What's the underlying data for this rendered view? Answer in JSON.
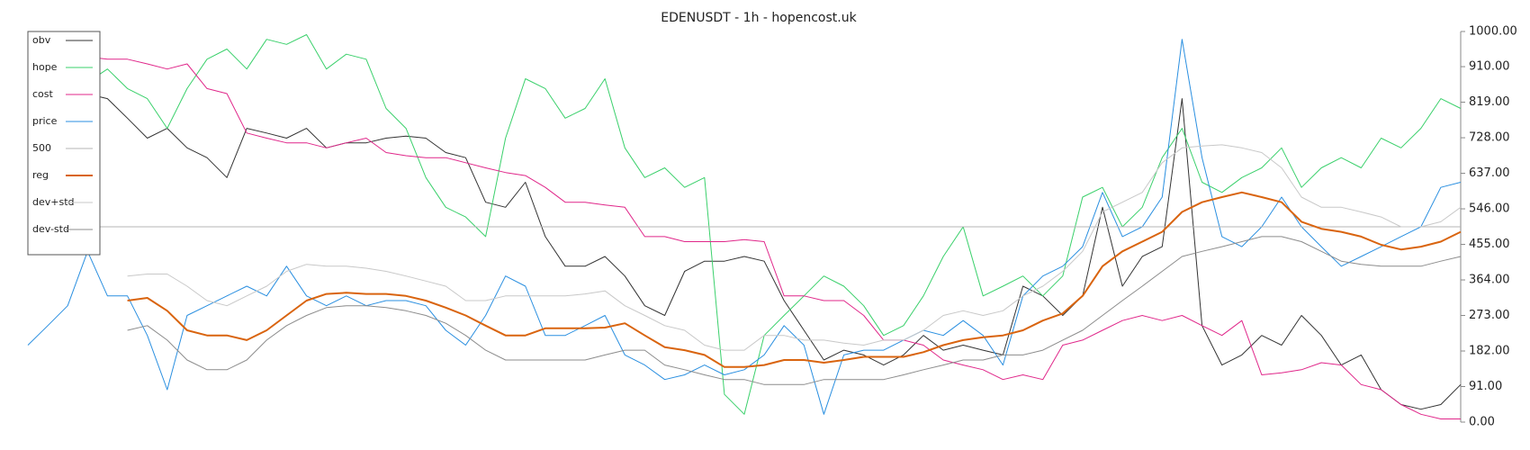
{
  "chart_data": {
    "type": "line",
    "title": "EDENUSDT - 1h - hopencost.uk",
    "legend": "upper left",
    "y_axis_side": "right",
    "ylim": [
      0,
      1000
    ],
    "yticks": [
      {
        "value": 0,
        "label": "0.00"
      },
      {
        "value": 91,
        "label": "91.00"
      },
      {
        "value": 182,
        "label": "182.00"
      },
      {
        "value": 273,
        "label": "273.00"
      },
      {
        "value": 364,
        "label": "364.00"
      },
      {
        "value": 455,
        "label": "455.00"
      },
      {
        "value": 546,
        "label": "546.00"
      },
      {
        "value": 637,
        "label": "637.00"
      },
      {
        "value": 728,
        "label": "728.00"
      },
      {
        "value": 819,
        "label": "819.00"
      },
      {
        "value": 910,
        "label": "910.00"
      },
      {
        "value": 1000,
        "label": "1000.00"
      }
    ],
    "series": [
      {
        "name": "obv",
        "color": "#333333",
        "width": 1,
        "values": [
          860,
          850,
          830,
          840,
          828,
          778,
          727,
          752,
          702,
          677,
          626,
          752,
          740,
          727,
          752,
          702,
          715,
          715,
          727,
          732,
          727,
          690,
          677,
          563,
          550,
          614,
          475,
          399,
          399,
          424,
          374,
          298,
          273,
          386,
          412,
          412,
          424,
          412,
          311,
          235,
          159,
          184,
          172,
          146,
          172,
          222,
          184,
          197,
          184,
          172,
          348,
          323,
          273,
          323,
          550,
          348,
          424,
          449,
          828,
          247,
          146,
          172,
          222,
          197,
          273,
          222,
          146,
          172,
          83,
          45,
          33,
          45,
          96
        ]
      },
      {
        "name": "hope",
        "color": "#3ad06b",
        "width": 1,
        "values": [
          920,
          900,
          880,
          870,
          904,
          854,
          828,
          752,
          854,
          929,
          955,
          904,
          980,
          967,
          992,
          904,
          942,
          929,
          803,
          752,
          626,
          550,
          525,
          475,
          727,
          879,
          854,
          778,
          803,
          879,
          702,
          626,
          651,
          601,
          626,
          71,
          20,
          222,
          273,
          323,
          374,
          348,
          298,
          222,
          247,
          323,
          424,
          500,
          323,
          348,
          374,
          323,
          374,
          576,
          601,
          500,
          550,
          677,
          752,
          614,
          588,
          626,
          651,
          702,
          601,
          651,
          677,
          651,
          727,
          702,
          752,
          828,
          803
        ]
      },
      {
        "name": "cost",
        "color": "#e0278a",
        "width": 1,
        "values": [
          950,
          930,
          930,
          935,
          929,
          929,
          917,
          904,
          917,
          854,
          841,
          740,
          727,
          715,
          715,
          702,
          715,
          727,
          690,
          682,
          677,
          677,
          664,
          651,
          639,
          631,
          601,
          563,
          563,
          556,
          550,
          475,
          475,
          462,
          462,
          462,
          467,
          462,
          323,
          323,
          311,
          311,
          273,
          210,
          210,
          197,
          159,
          146,
          134,
          109,
          121,
          109,
          197,
          210,
          235,
          260,
          273,
          260,
          273,
          247,
          222,
          260,
          121,
          126,
          134,
          152,
          146,
          96,
          83,
          45,
          20,
          8,
          8
        ]
      },
      {
        "name": "price",
        "color": "#2a8fe0",
        "width": 1,
        "values": [
          197,
          247,
          298,
          437,
          323,
          323,
          222,
          83,
          273,
          298,
          323,
          348,
          323,
          399,
          323,
          298,
          323,
          298,
          311,
          311,
          298,
          235,
          197,
          273,
          374,
          348,
          222,
          222,
          247,
          273,
          172,
          146,
          109,
          121,
          146,
          121,
          134,
          172,
          247,
          197,
          20,
          172,
          184,
          184,
          210,
          235,
          222,
          260,
          222,
          146,
          323,
          374,
          399,
          449,
          588,
          475,
          500,
          576,
          980,
          677,
          475,
          449,
          500,
          576,
          500,
          449,
          399,
          424,
          449,
          475,
          500,
          601,
          614
        ]
      },
      {
        "name": "500",
        "color": "#b4b4b4",
        "width": 1,
        "values": [
          500,
          500,
          500,
          500,
          500,
          500,
          500,
          500,
          500,
          500,
          500,
          500,
          500,
          500,
          500,
          500,
          500,
          500,
          500,
          500,
          500,
          500,
          500,
          500,
          500,
          500,
          500,
          500,
          500,
          500,
          500,
          500,
          500,
          500,
          500,
          500,
          500,
          500,
          500,
          500,
          500,
          500,
          500,
          500,
          500,
          500,
          500,
          500,
          500,
          500,
          500,
          500,
          500,
          500,
          500,
          500,
          500,
          500,
          500,
          500,
          500,
          500,
          500,
          500,
          500,
          500,
          500,
          500,
          500,
          500,
          500,
          500,
          500
        ]
      },
      {
        "name": "reg",
        "color": "#d9640f",
        "width": 2,
        "values": [
          null,
          null,
          null,
          null,
          null,
          311,
          318,
          285,
          235,
          222,
          222,
          210,
          235,
          273,
          311,
          328,
          331,
          328,
          328,
          323,
          311,
          293,
          273,
          247,
          222,
          222,
          240,
          240,
          240,
          242,
          253,
          222,
          192,
          184,
          172,
          141,
          141,
          146,
          159,
          159,
          152,
          159,
          167,
          167,
          167,
          179,
          197,
          210,
          217,
          222,
          235,
          260,
          278,
          323,
          399,
          437,
          462,
          487,
          538,
          563,
          576,
          588,
          576,
          563,
          513,
          495,
          487,
          475,
          454,
          442,
          449,
          462,
          487
        ]
      },
      {
        "name": "dev+std",
        "color": "#c8c8c8",
        "width": 1,
        "values": [
          null,
          null,
          null,
          null,
          null,
          374,
          379,
          379,
          348,
          311,
          298,
          323,
          348,
          386,
          404,
          399,
          399,
          394,
          386,
          374,
          361,
          348,
          311,
          311,
          323,
          323,
          323,
          323,
          328,
          336,
          298,
          273,
          247,
          235,
          197,
          184,
          184,
          222,
          222,
          210,
          210,
          202,
          197,
          210,
          210,
          235,
          273,
          285,
          273,
          285,
          323,
          348,
          386,
          437,
          538,
          563,
          588,
          664,
          702,
          707,
          710,
          702,
          690,
          651,
          576,
          550,
          550,
          538,
          525,
          500,
          500,
          513,
          550
        ]
      },
      {
        "name": "dev-std",
        "color": "#8c8c8c",
        "width": 1,
        "values": [
          null,
          null,
          null,
          null,
          null,
          235,
          247,
          210,
          159,
          134,
          134,
          159,
          210,
          247,
          273,
          293,
          298,
          298,
          293,
          285,
          273,
          253,
          222,
          184,
          159,
          159,
          159,
          159,
          159,
          172,
          184,
          184,
          146,
          134,
          121,
          109,
          109,
          96,
          96,
          96,
          109,
          109,
          109,
          109,
          121,
          134,
          146,
          159,
          159,
          172,
          172,
          184,
          210,
          235,
          273,
          311,
          348,
          386,
          424,
          437,
          449,
          462,
          475,
          475,
          462,
          437,
          412,
          404,
          399,
          399,
          399,
          412,
          424
        ]
      }
    ]
  }
}
